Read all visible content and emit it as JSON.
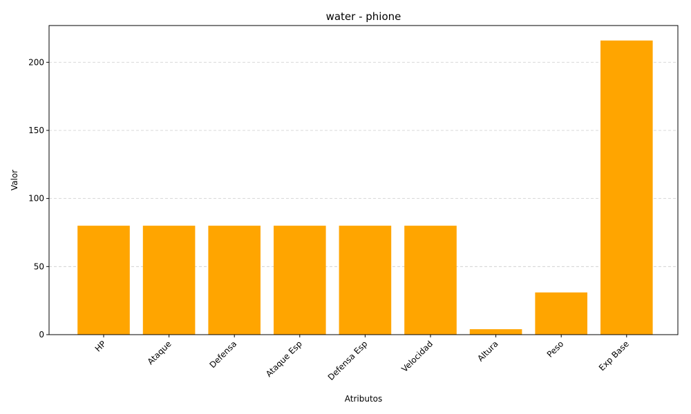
{
  "chart_data": {
    "type": "bar",
    "title": "water - phione",
    "xlabel": "Atributos",
    "ylabel": "Valor",
    "categories": [
      "HP",
      "Ataque",
      "Defensa",
      "Ataque Esp",
      "Defensa Esp",
      "Velocidad",
      "Altura",
      "Peso",
      "Exp Base"
    ],
    "values": [
      80,
      80,
      80,
      80,
      80,
      80,
      4,
      31,
      216
    ],
    "ylim": [
      0,
      227
    ],
    "yticks": [
      0,
      50,
      100,
      150,
      200
    ],
    "grid": {
      "axis": "y",
      "style": "dashed"
    },
    "bar_color": "#FFA500",
    "x_tick_rotation_deg": 45
  }
}
